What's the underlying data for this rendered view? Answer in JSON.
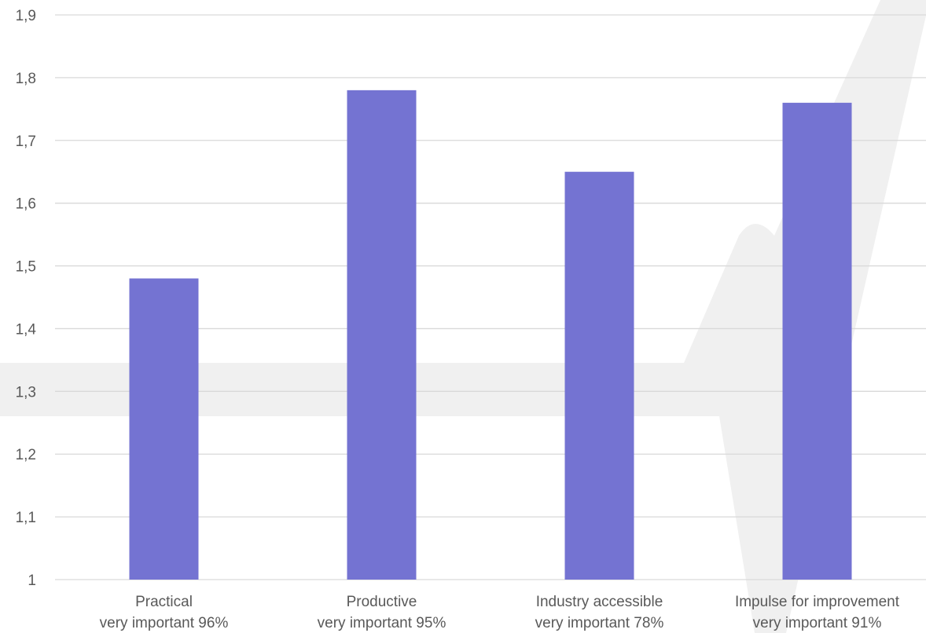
{
  "chart_data": {
    "type": "bar",
    "categories": [
      [
        "Practical",
        "very important 96%"
      ],
      [
        "Productive",
        "very important 95%"
      ],
      [
        "Industry accessible",
        "very important 78%"
      ],
      [
        "Impulse for improvement",
        "very important 91%"
      ]
    ],
    "values": [
      1.48,
      1.78,
      1.65,
      1.76
    ],
    "ylim": [
      1,
      1.9
    ],
    "yticks": [
      "1",
      "1,1",
      "1,2",
      "1,3",
      "1,4",
      "1,5",
      "1,6",
      "1,7",
      "1,8",
      "1,9"
    ],
    "grid": true,
    "bar_color": "#7473D2",
    "grid_color": "#D9D9D9",
    "text_color": "#595959",
    "watermark_color": "#F0F0F0"
  }
}
